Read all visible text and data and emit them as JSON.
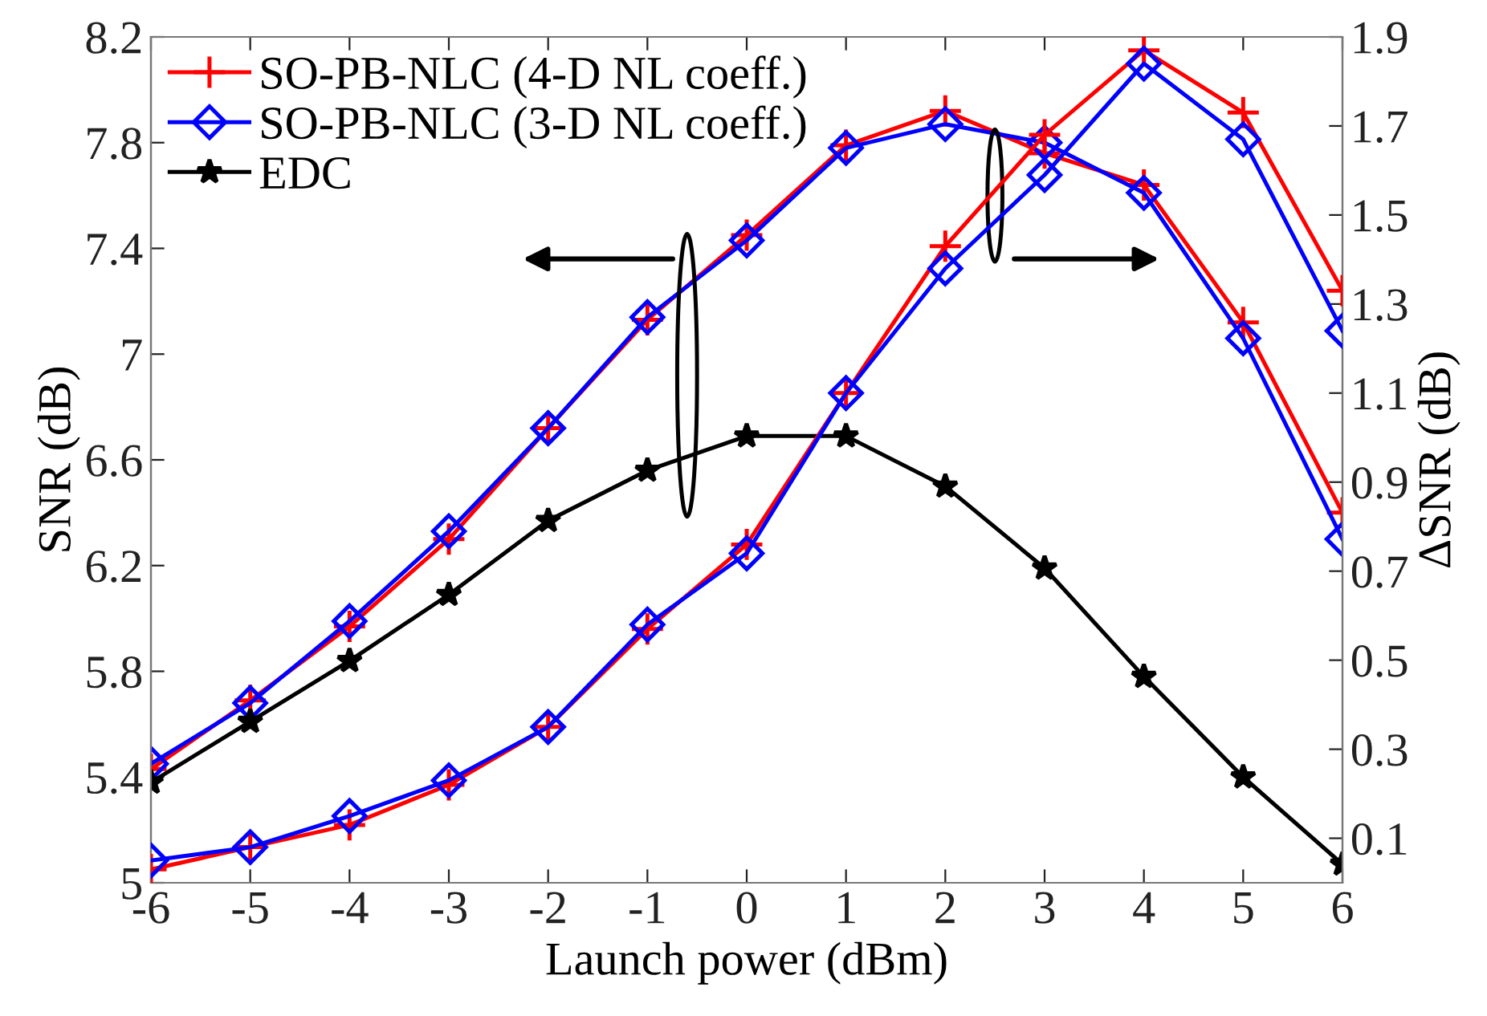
{
  "chart_data": {
    "type": "line",
    "xlabel": "Launch power (dBm)",
    "ylabel": "SNR (dB)",
    "y2label": "ΔSNR (dB)",
    "x": [
      -6,
      -5,
      -4,
      -3,
      -2,
      -1,
      0,
      1,
      2,
      3,
      4,
      5,
      6
    ],
    "xlim": [
      -6,
      6
    ],
    "xticks": [
      -6,
      -5,
      -4,
      -3,
      -2,
      -1,
      0,
      1,
      2,
      3,
      4,
      5,
      6
    ],
    "ylim": [
      5,
      8.2
    ],
    "yticks": [
      5,
      5.4,
      5.8,
      6.2,
      6.6,
      7,
      7.4,
      7.8,
      8.2
    ],
    "y2lim": [
      0,
      1.9
    ],
    "y2ticks": [
      0.1,
      0.3,
      0.5,
      0.7,
      0.9,
      1.1,
      1.3,
      1.5,
      1.7,
      1.9
    ],
    "grid": false,
    "legend": "top left",
    "line_style": "solid",
    "series": [
      {
        "name": "SO-PB-NLC (4-D NL coeff.)",
        "color": "#ff0000",
        "marker": "cross",
        "values": [
          5.43,
          5.69,
          5.97,
          6.3,
          6.72,
          7.13,
          7.45,
          7.79,
          7.92,
          7.76,
          7.64,
          7.12,
          6.4
        ]
      },
      {
        "name": "SO-PB-NLC (3-D NL coeff.)",
        "color": "#0000ff",
        "marker": "diamond",
        "values": [
          5.45,
          5.68,
          5.99,
          6.33,
          6.72,
          7.14,
          7.43,
          7.78,
          7.87,
          7.8,
          7.61,
          7.06,
          6.3
        ]
      },
      {
        "name": "EDC",
        "color": "#000000",
        "marker": "star",
        "values": [
          5.38,
          5.61,
          5.84,
          6.09,
          6.37,
          6.56,
          6.69,
          6.69,
          6.5,
          6.19,
          5.78,
          5.4,
          5.07
        ]
      },
      {
        "color": "#ff0000",
        "marker": "cross",
        "axis": "y2",
        "values": [
          0.03,
          0.08,
          0.13,
          0.22,
          0.35,
          0.57,
          0.76,
          1.1,
          1.43,
          1.68,
          1.87,
          1.73,
          1.33
        ]
      },
      {
        "color": "#0000ff",
        "marker": "diamond",
        "axis": "y2",
        "values": [
          0.05,
          0.08,
          0.15,
          0.23,
          0.35,
          0.58,
          0.74,
          1.1,
          1.38,
          1.59,
          1.84,
          1.67,
          1.24
        ]
      }
    ]
  }
}
